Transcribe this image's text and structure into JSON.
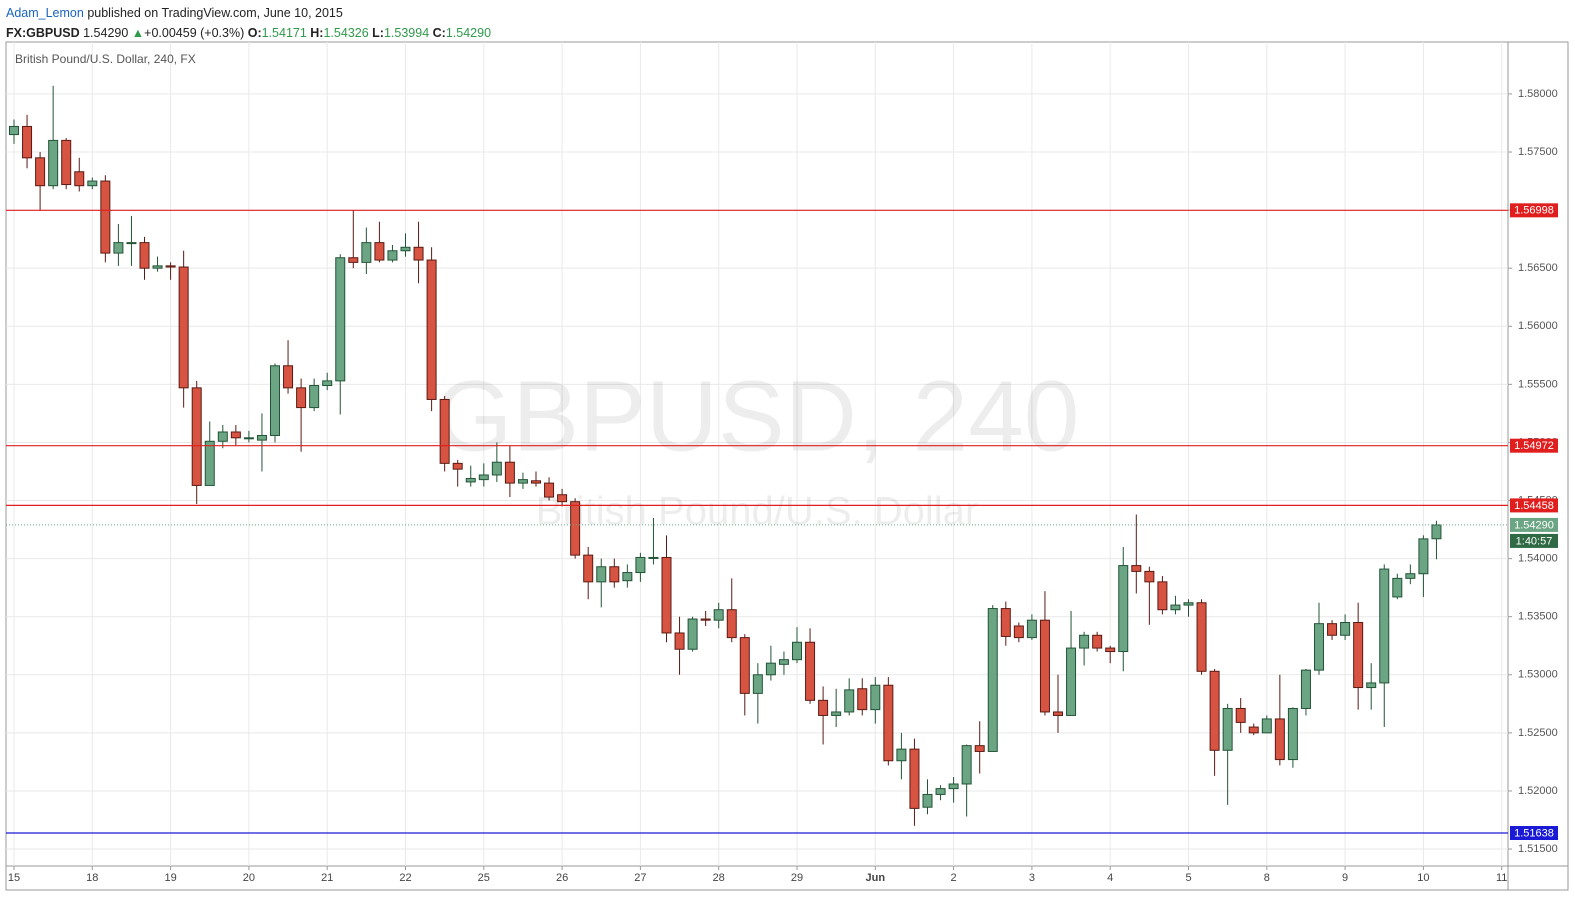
{
  "header": {
    "author": "Adam_Lemon",
    "published": "published on TradingView.com, June 10, 2015",
    "symbol": "FX:GBPUSD",
    "last": "1.54290",
    "arrow": "▲",
    "change": "+0.00459 (+0.3%)",
    "o_label": "O:",
    "o": "1.54171",
    "h_label": "H:",
    "h": "1.54326",
    "l_label": "L:",
    "l": "1.53994",
    "c_label": "C:",
    "c": "1.54290"
  },
  "chart_data": {
    "type": "candlestick",
    "legend_text": "British Pound/U.S. Dollar, 240, FX",
    "watermark": "GBPUSD, 240",
    "watermark_subtitle": "British Pound/U.S. Dollar",
    "up_color": "#6ba583",
    "down_color": "#d75442",
    "grid": true,
    "categories": [
      "15",
      null,
      null,
      null,
      null,
      null,
      "18",
      null,
      null,
      null,
      null,
      null,
      "19",
      null,
      null,
      null,
      null,
      null,
      "20",
      null,
      null,
      null,
      null,
      null,
      "21",
      null,
      null,
      null,
      null,
      null,
      "22",
      null,
      null,
      null,
      null,
      null,
      "25",
      null,
      null,
      null,
      null,
      null,
      "26",
      null,
      null,
      null,
      null,
      null,
      "27",
      null,
      null,
      null,
      null,
      null,
      "28",
      null,
      null,
      null,
      null,
      null,
      "29",
      null,
      null,
      null,
      null,
      null,
      "Jun",
      null,
      null,
      null,
      null,
      null,
      "2",
      null,
      null,
      null,
      null,
      null,
      "3",
      null,
      null,
      null,
      null,
      null,
      "4",
      null,
      null,
      null,
      null,
      null,
      "5",
      null,
      null,
      null,
      null,
      null,
      "8",
      null,
      null,
      null,
      null,
      null,
      "9",
      null,
      null,
      null,
      null,
      null,
      "10",
      null,
      null,
      null,
      null,
      null,
      "11"
    ],
    "open": [
      1.5765,
      1.5772,
      1.5745,
      1.5721,
      1.576,
      1.5733,
      1.5721,
      1.5725,
      1.5663,
      1.5672,
      1.5672,
      1.565,
      1.5652,
      1.5651,
      1.5547,
      1.5463,
      1.5501,
      1.5509,
      1.5504,
      1.5502,
      1.5506,
      1.5566,
      1.5547,
      1.553,
      1.5549,
      1.5553,
      1.5659,
      1.5655,
      1.5672,
      1.5657,
      1.5665,
      1.5668,
      1.5657,
      1.5537,
      1.5482,
      1.5466,
      1.5468,
      1.5472,
      1.5483,
      1.5465,
      1.5467,
      1.5465,
      1.5455,
      1.5449,
      1.5403,
      1.538,
      1.5393,
      1.5381,
      1.5388,
      1.5401,
      1.5401,
      1.5336,
      1.5322,
      1.5348,
      1.5347,
      1.5356,
      1.5332,
      1.5284,
      1.53,
      1.5309,
      1.5313,
      1.5328,
      1.5278,
      1.5265,
      1.5268,
      1.5288,
      1.527,
      1.5291,
      1.5226,
      1.5236,
      1.5186,
      1.5197,
      1.5202,
      1.5206,
      1.5239,
      1.5234,
      1.5357,
      1.5342,
      1.5332,
      1.5347,
      1.5268,
      1.5265,
      1.5323,
      1.5334,
      1.5323,
      1.532,
      1.5394,
      1.5389,
      1.538,
      1.5356,
      1.536,
      1.5362,
      1.5303,
      1.5235,
      1.5271,
      1.5255,
      1.525,
      1.5262,
      1.5227,
      1.5271,
      1.5304,
      1.5344,
      1.5334,
      1.5345,
      1.5289,
      1.5293,
      1.5367,
      1.5383,
      1.5387,
      1.54171,
      null,
      null,
      null,
      null,
      null
    ],
    "high": [
      1.5778,
      1.5782,
      1.575,
      1.5807,
      1.5762,
      1.5745,
      1.5728,
      1.573,
      1.5688,
      1.5695,
      1.5677,
      1.566,
      1.5655,
      1.5665,
      1.5553,
      1.5518,
      1.5515,
      1.5515,
      1.551,
      1.5525,
      1.5568,
      1.5588,
      1.5555,
      1.5555,
      1.556,
      1.5662,
      1.57,
      1.5685,
      1.569,
      1.567,
      1.568,
      1.569,
      1.5668,
      1.554,
      1.5485,
      1.548,
      1.5482,
      1.55,
      1.5497,
      1.5474,
      1.5475,
      1.547,
      1.546,
      1.5452,
      1.541,
      1.54,
      1.54,
      1.5395,
      1.5405,
      1.5435,
      1.542,
      1.535,
      1.535,
      1.5355,
      1.5362,
      1.5383,
      1.5335,
      1.531,
      1.5325,
      1.532,
      1.5341,
      1.534,
      1.529,
      1.5288,
      1.5297,
      1.5297,
      1.5298,
      1.5298,
      1.525,
      1.5245,
      1.521,
      1.5205,
      1.5212,
      1.524,
      1.526,
      1.536,
      1.5363,
      1.5345,
      1.5352,
      1.5372,
      1.53,
      1.5355,
      1.5337,
      1.5337,
      1.5325,
      1.541,
      1.5438,
      1.5393,
      1.5385,
      1.5368,
      1.5365,
      1.5365,
      1.5305,
      1.5275,
      1.528,
      1.5258,
      1.5265,
      1.53,
      1.5272,
      1.5305,
      1.5362,
      1.5347,
      1.5352,
      1.5362,
      1.531,
      1.5395,
      1.5387,
      1.5395,
      1.542,
      1.54326,
      null,
      null,
      null,
      null,
      null
    ],
    "low": [
      1.5757,
      1.5736,
      1.57,
      1.5718,
      1.5718,
      1.5716,
      1.5718,
      1.5655,
      1.5652,
      1.5652,
      1.564,
      1.5647,
      1.564,
      1.553,
      1.5447,
      1.5463,
      1.5495,
      1.5497,
      1.55,
      1.5475,
      1.55,
      1.5542,
      1.5492,
      1.5527,
      1.5545,
      1.5524,
      1.565,
      1.5645,
      1.5655,
      1.5655,
      1.566,
      1.5637,
      1.5527,
      1.5475,
      1.5462,
      1.5462,
      1.5462,
      1.5466,
      1.5453,
      1.546,
      1.5462,
      1.545,
      1.5445,
      1.54,
      1.5365,
      1.5358,
      1.5375,
      1.5375,
      1.538,
      1.5395,
      1.5328,
      1.53,
      1.532,
      1.5342,
      1.534,
      1.5328,
      1.5265,
      1.5258,
      1.5295,
      1.53,
      1.531,
      1.5275,
      1.524,
      1.5255,
      1.5265,
      1.5265,
      1.5258,
      1.5222,
      1.521,
      1.517,
      1.518,
      1.5192,
      1.519,
      1.5178,
      1.5215,
      1.5234,
      1.5325,
      1.5328,
      1.533,
      1.5265,
      1.525,
      1.5265,
      1.5308,
      1.532,
      1.531,
      1.5303,
      1.537,
      1.5343,
      1.5352,
      1.5352,
      1.535,
      1.53,
      1.5213,
      1.5188,
      1.525,
      1.5248,
      1.525,
      1.5222,
      1.522,
      1.5265,
      1.53,
      1.533,
      1.533,
      1.527,
      1.527,
      1.5255,
      1.5365,
      1.5378,
      1.5367,
      1.53994,
      null,
      null,
      null,
      null,
      null
    ],
    "close": [
      1.5772,
      1.5745,
      1.5721,
      1.576,
      1.5722,
      1.5721,
      1.5725,
      1.5663,
      1.5672,
      1.5672,
      1.565,
      1.5652,
      1.5651,
      1.5547,
      1.5463,
      1.5501,
      1.5509,
      1.5504,
      1.5504,
      1.5506,
      1.5566,
      1.5547,
      1.553,
      1.5549,
      1.5553,
      1.5659,
      1.5655,
      1.5672,
      1.5657,
      1.5665,
      1.5668,
      1.5657,
      1.5537,
      1.5482,
      1.5477,
      1.5469,
      1.5472,
      1.5483,
      1.5465,
      1.5468,
      1.5465,
      1.5453,
      1.5449,
      1.5403,
      1.538,
      1.5393,
      1.538,
      1.5388,
      1.5401,
      1.5401,
      1.5336,
      1.5322,
      1.5348,
      1.5347,
      1.5356,
      1.5332,
      1.5284,
      1.53,
      1.531,
      1.5313,
      1.5328,
      1.5278,
      1.5265,
      1.5268,
      1.5287,
      1.527,
      1.5291,
      1.5226,
      1.5236,
      1.5185,
      1.5197,
      1.5202,
      1.5206,
      1.5239,
      1.5234,
      1.5357,
      1.5333,
      1.5332,
      1.5347,
      1.5268,
      1.5265,
      1.5323,
      1.5334,
      1.5323,
      1.532,
      1.5394,
      1.5389,
      1.538,
      1.5356,
      1.536,
      1.5362,
      1.5303,
      1.5235,
      1.5271,
      1.5259,
      1.525,
      1.5262,
      1.5227,
      1.5271,
      1.5304,
      1.5344,
      1.5334,
      1.5345,
      1.5289,
      1.5293,
      1.5391,
      1.5383,
      1.5387,
      1.5417,
      1.5429,
      null,
      null,
      null,
      null,
      null
    ],
    "ylim": [
      1.51354,
      1.58447
    ],
    "yticks": [
      {
        "value": 1.515,
        "label": "1.51500"
      },
      {
        "value": 1.52,
        "label": "1.52000"
      },
      {
        "value": 1.525,
        "label": "1.52500"
      },
      {
        "value": 1.53,
        "label": "1.53000"
      },
      {
        "value": 1.535,
        "label": "1.53500"
      },
      {
        "value": 1.54,
        "label": "1.54000"
      },
      {
        "value": 1.545,
        "label": "1.54500"
      },
      {
        "value": 1.55,
        "label": "1.55000"
      },
      {
        "value": 1.555,
        "label": "1.55500"
      },
      {
        "value": 1.56,
        "label": "1.56000"
      },
      {
        "value": 1.565,
        "label": "1.56500"
      },
      {
        "value": 1.57,
        "label": "1.57000"
      },
      {
        "value": 1.575,
        "label": "1.57500"
      },
      {
        "value": 1.58,
        "label": "1.58000"
      }
    ],
    "hlines": [
      {
        "value": 1.56998,
        "label": "1.56998",
        "color": "#e01e1e"
      },
      {
        "value": 1.54972,
        "label": "1.54972",
        "color": "#e01e1e"
      },
      {
        "value": 1.54458,
        "label": "1.54458",
        "color": "#e01e1e"
      },
      {
        "value": 1.51638,
        "label": "1.51638",
        "color": "#1a1ad6"
      }
    ],
    "last_price": {
      "value": 1.5429,
      "label": "1.54290",
      "countdown": "1:40:57",
      "color": "#6ba583"
    }
  }
}
